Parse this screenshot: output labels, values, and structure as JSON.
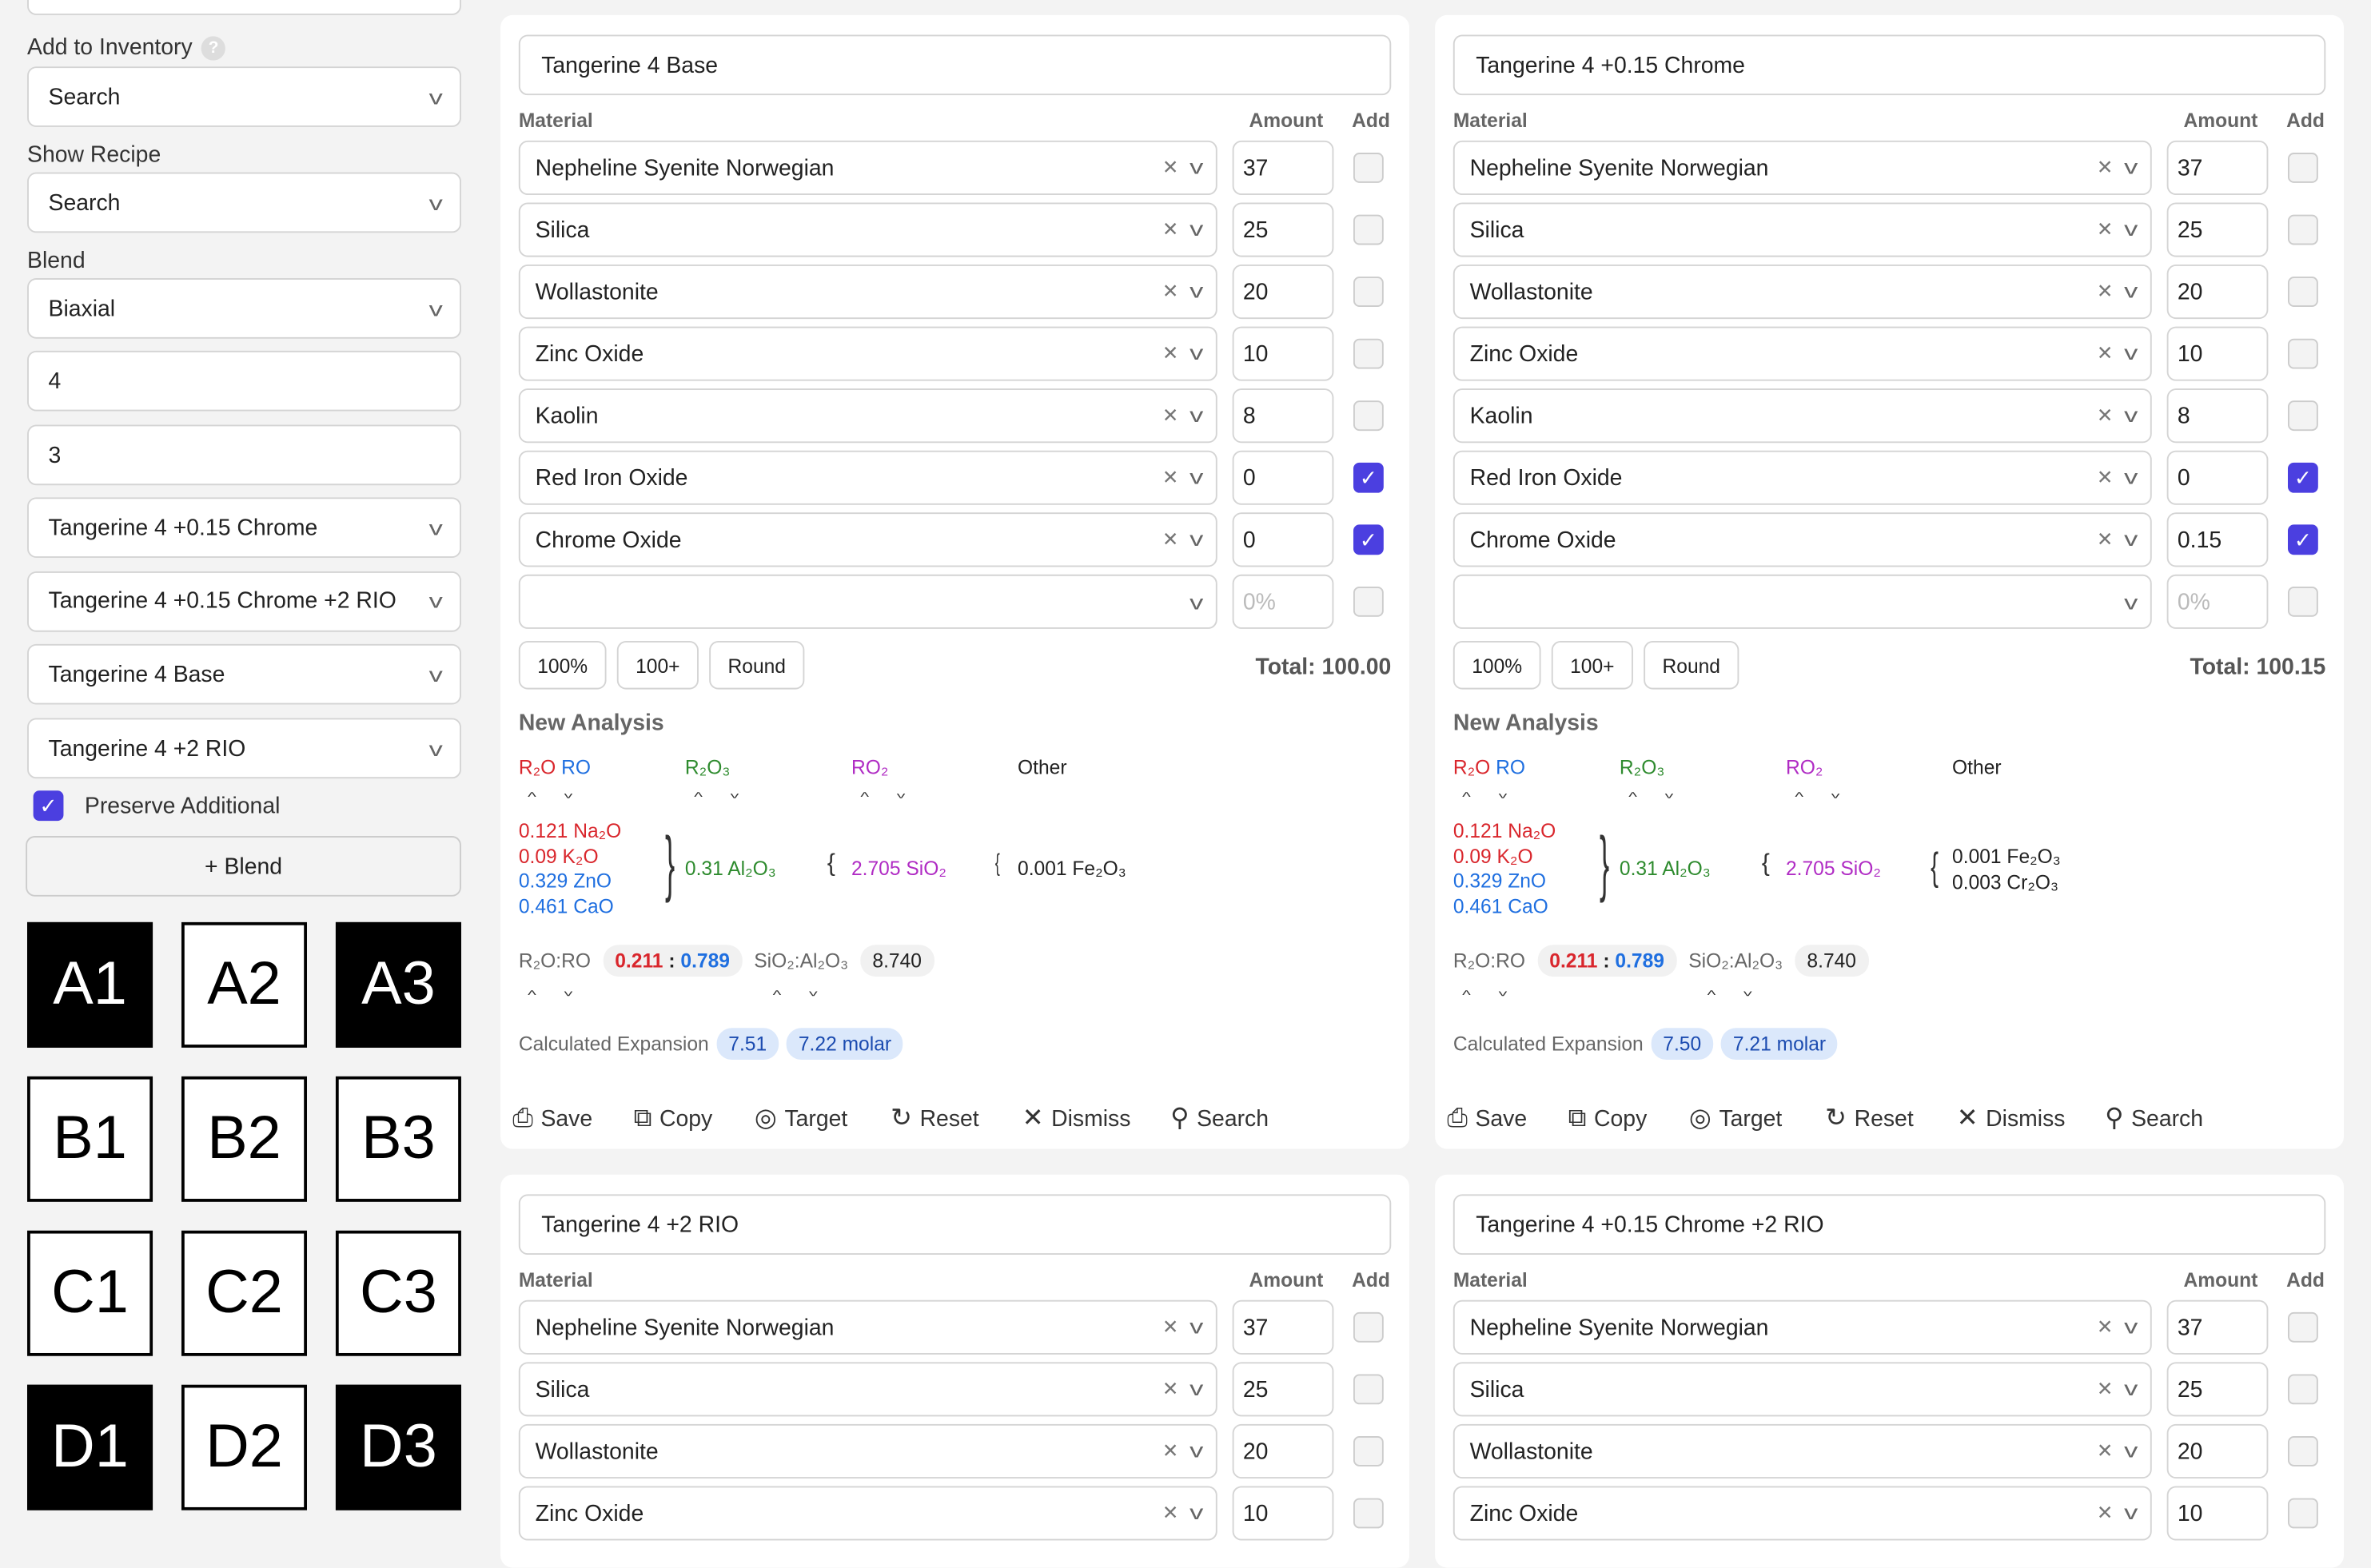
{
  "sidebar": {
    "add_inventory_label": "Add to Inventory",
    "add_inventory_value": "Search",
    "show_recipe_label": "Show Recipe",
    "show_recipe_value": "Search",
    "blend_label": "Blend",
    "blend_value": "Biaxial",
    "rows_value": "4",
    "cols_value": "3",
    "recipes": [
      "Tangerine 4 +0.15 Chrome",
      "Tangerine 4 +0.15 Chrome +2 RIO",
      "Tangerine 4 Base",
      "Tangerine 4 +2 RIO"
    ],
    "preserve_label": "Preserve Additional",
    "preserve_checked": true,
    "blend_button": "+ Blend",
    "grid": [
      {
        "label": "A1",
        "dark": true
      },
      {
        "label": "A2",
        "dark": false
      },
      {
        "label": "A3",
        "dark": true
      },
      {
        "label": "B1",
        "dark": false
      },
      {
        "label": "B2",
        "dark": false
      },
      {
        "label": "B3",
        "dark": false
      },
      {
        "label": "C1",
        "dark": false
      },
      {
        "label": "C2",
        "dark": false
      },
      {
        "label": "C3",
        "dark": false
      },
      {
        "label": "D1",
        "dark": true
      },
      {
        "label": "D2",
        "dark": false
      },
      {
        "label": "D3",
        "dark": true
      }
    ]
  },
  "labels": {
    "material": "Material",
    "amount": "Amount",
    "add": "Add",
    "btn100": "100%",
    "btn100p": "100+",
    "round": "Round",
    "new_analysis": "New Analysis",
    "r2o": "R₂O",
    "ro": "RO",
    "r2o3": "R₂O₃",
    "ro2": "RO₂",
    "other": "Other",
    "ratio": "R₂O:RO",
    "si_al": "SiO₂:Al₂O₃",
    "calc_exp": "Calculated Expansion",
    "colon": ":",
    "amount_placeholder": "0%",
    "actions": [
      "Save",
      "Copy",
      "Target",
      "Reset",
      "Dismiss",
      "Search"
    ]
  },
  "colors": {
    "accent": "#4b3fe0",
    "r2o": "#d9262c",
    "ro": "#1f6fe0",
    "r2o3": "#2e8b2e",
    "ro2": "#b02cc4"
  },
  "panels": [
    {
      "title": "Tangerine 4 Base",
      "rows": [
        {
          "material": "Nepheline Syenite Norwegian",
          "amount": "37",
          "add": false
        },
        {
          "material": "Silica",
          "amount": "25",
          "add": false
        },
        {
          "material": "Wollastonite",
          "amount": "20",
          "add": false
        },
        {
          "material": "Zinc Oxide",
          "amount": "10",
          "add": false
        },
        {
          "material": "Kaolin",
          "amount": "8",
          "add": false
        },
        {
          "material": "Red Iron Oxide",
          "amount": "0",
          "add": true
        },
        {
          "material": "Chrome Oxide",
          "amount": "0",
          "add": true
        }
      ],
      "total": "Total: 100.00",
      "r2o": [
        "0.121 Na₂O",
        "0.09 K₂O"
      ],
      "ro": [
        "0.329 ZnO",
        "0.461 CaO"
      ],
      "r2o3": "0.31 Al₂O₃",
      "ro2": "2.705 SiO₂",
      "other": [
        "0.001 Fe₂O₃"
      ],
      "ratio_r2o": "0.211",
      "ratio_ro": "0.789",
      "si_al": "8.740",
      "expansion": "7.51",
      "expansion_molar": "7.22 molar"
    },
    {
      "title": "Tangerine 4 +0.15 Chrome",
      "rows": [
        {
          "material": "Nepheline Syenite Norwegian",
          "amount": "37",
          "add": false
        },
        {
          "material": "Silica",
          "amount": "25",
          "add": false
        },
        {
          "material": "Wollastonite",
          "amount": "20",
          "add": false
        },
        {
          "material": "Zinc Oxide",
          "amount": "10",
          "add": false
        },
        {
          "material": "Kaolin",
          "amount": "8",
          "add": false
        },
        {
          "material": "Red Iron Oxide",
          "amount": "0",
          "add": true
        },
        {
          "material": "Chrome Oxide",
          "amount": "0.15",
          "add": true
        }
      ],
      "total": "Total: 100.15",
      "r2o": [
        "0.121 Na₂O",
        "0.09 K₂O"
      ],
      "ro": [
        "0.329 ZnO",
        "0.461 CaO"
      ],
      "r2o3": "0.31 Al₂O₃",
      "ro2": "2.705 SiO₂",
      "other": [
        "0.001 Fe₂O₃",
        "0.003 Cr₂O₃"
      ],
      "ratio_r2o": "0.211",
      "ratio_ro": "0.789",
      "si_al": "8.740",
      "expansion": "7.50",
      "expansion_molar": "7.21 molar"
    },
    {
      "title": "Tangerine 4 +2 RIO",
      "rows": [
        {
          "material": "Nepheline Syenite Norwegian",
          "amount": "37",
          "add": false
        },
        {
          "material": "Silica",
          "amount": "25",
          "add": false
        },
        {
          "material": "Wollastonite",
          "amount": "20",
          "add": false
        },
        {
          "material": "Zinc Oxide",
          "amount": "10",
          "add": false
        }
      ]
    },
    {
      "title": "Tangerine 4 +0.15 Chrome +2 RIO",
      "rows": [
        {
          "material": "Nepheline Syenite Norwegian",
          "amount": "37",
          "add": false
        },
        {
          "material": "Silica",
          "amount": "25",
          "add": false
        },
        {
          "material": "Wollastonite",
          "amount": "20",
          "add": false
        },
        {
          "material": "Zinc Oxide",
          "amount": "10",
          "add": false
        }
      ]
    }
  ]
}
